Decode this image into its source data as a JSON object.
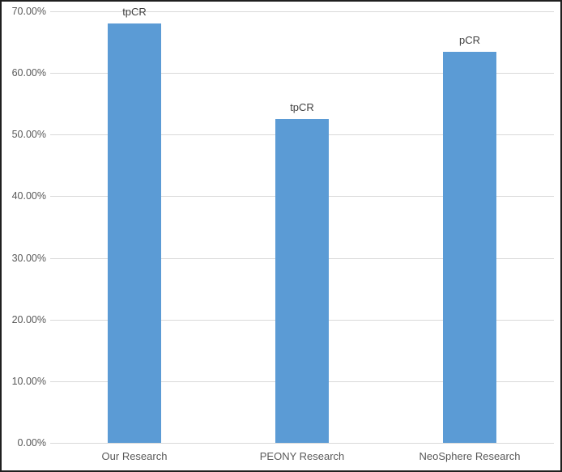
{
  "chart": {
    "background": "#FFFFFF",
    "frame_color": "#1F1F1F",
    "bar_fill": "#5B9BD5",
    "gridline_color": "#D9D9D9",
    "axis_line_color": "#D9D9D9",
    "tick_label_color": "#595959",
    "category_label_color": "#595959",
    "data_label_color": "#404040"
  },
  "chart_data": {
    "type": "bar",
    "categories": [
      "Our Research",
      "PEONY Research",
      "NeoSphere Research"
    ],
    "values": [
      68.0,
      52.5,
      63.4
    ],
    "data_labels": [
      "tpCR",
      "tpCR",
      "pCR"
    ],
    "value_unit": "%",
    "y_tick_labels": [
      "0.00%",
      "10.00%",
      "20.00%",
      "30.00%",
      "40.00%",
      "50.00%",
      "60.00%",
      "70.00%"
    ],
    "ylim": [
      0,
      70
    ],
    "y_tick_step": 10,
    "grid": true,
    "legend": false,
    "xlabel": "",
    "ylabel": ""
  }
}
